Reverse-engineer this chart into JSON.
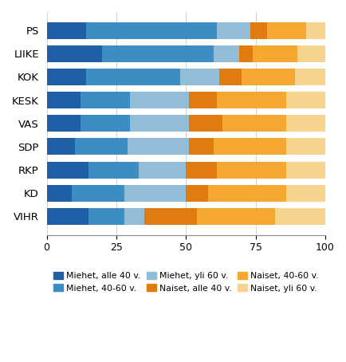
{
  "parties": [
    "PS",
    "LIIKE",
    "KOK",
    "KESK",
    "VAS",
    "SDP",
    "RKP",
    "KD",
    "VIHR"
  ],
  "segments": {
    "miehet_alle40": [
      14,
      20,
      14,
      12,
      12,
      10,
      15,
      9,
      15
    ],
    "miehet_4060": [
      47,
      40,
      34,
      18,
      18,
      19,
      18,
      19,
      13
    ],
    "miehet_yli60": [
      12,
      9,
      14,
      21,
      21,
      22,
      17,
      22,
      7
    ],
    "naiset_alle40": [
      6,
      5,
      8,
      10,
      12,
      9,
      11,
      8,
      19
    ],
    "naiset_4060": [
      14,
      16,
      19,
      25,
      23,
      26,
      25,
      28,
      28
    ],
    "naiset_yli60": [
      7,
      10,
      11,
      14,
      14,
      14,
      14,
      14,
      18
    ]
  },
  "colors": {
    "miehet_alle40": "#1f5fa6",
    "miehet_4060": "#3b8dc4",
    "miehet_yli60": "#92bdd8",
    "naiset_alle40": "#e07b10",
    "naiset_4060": "#f5a830",
    "naiset_yli60": "#f7d48e"
  },
  "legend_labels": {
    "miehet_alle40": "Miehet, alle 40 v.",
    "miehet_4060": "Miehet, 40-60 v.",
    "miehet_yli60": "Miehet, yli 60 v.",
    "naiset_alle40": "Naiset, alle 40 v.",
    "naiset_4060": "Naiset, 40-60 v.",
    "naiset_yli60": "Naiset, yli 60 v."
  },
  "xlim": [
    0,
    100
  ],
  "xticks": [
    0,
    25,
    50,
    75,
    100
  ],
  "background_color": "#ffffff",
  "bar_height": 0.72
}
